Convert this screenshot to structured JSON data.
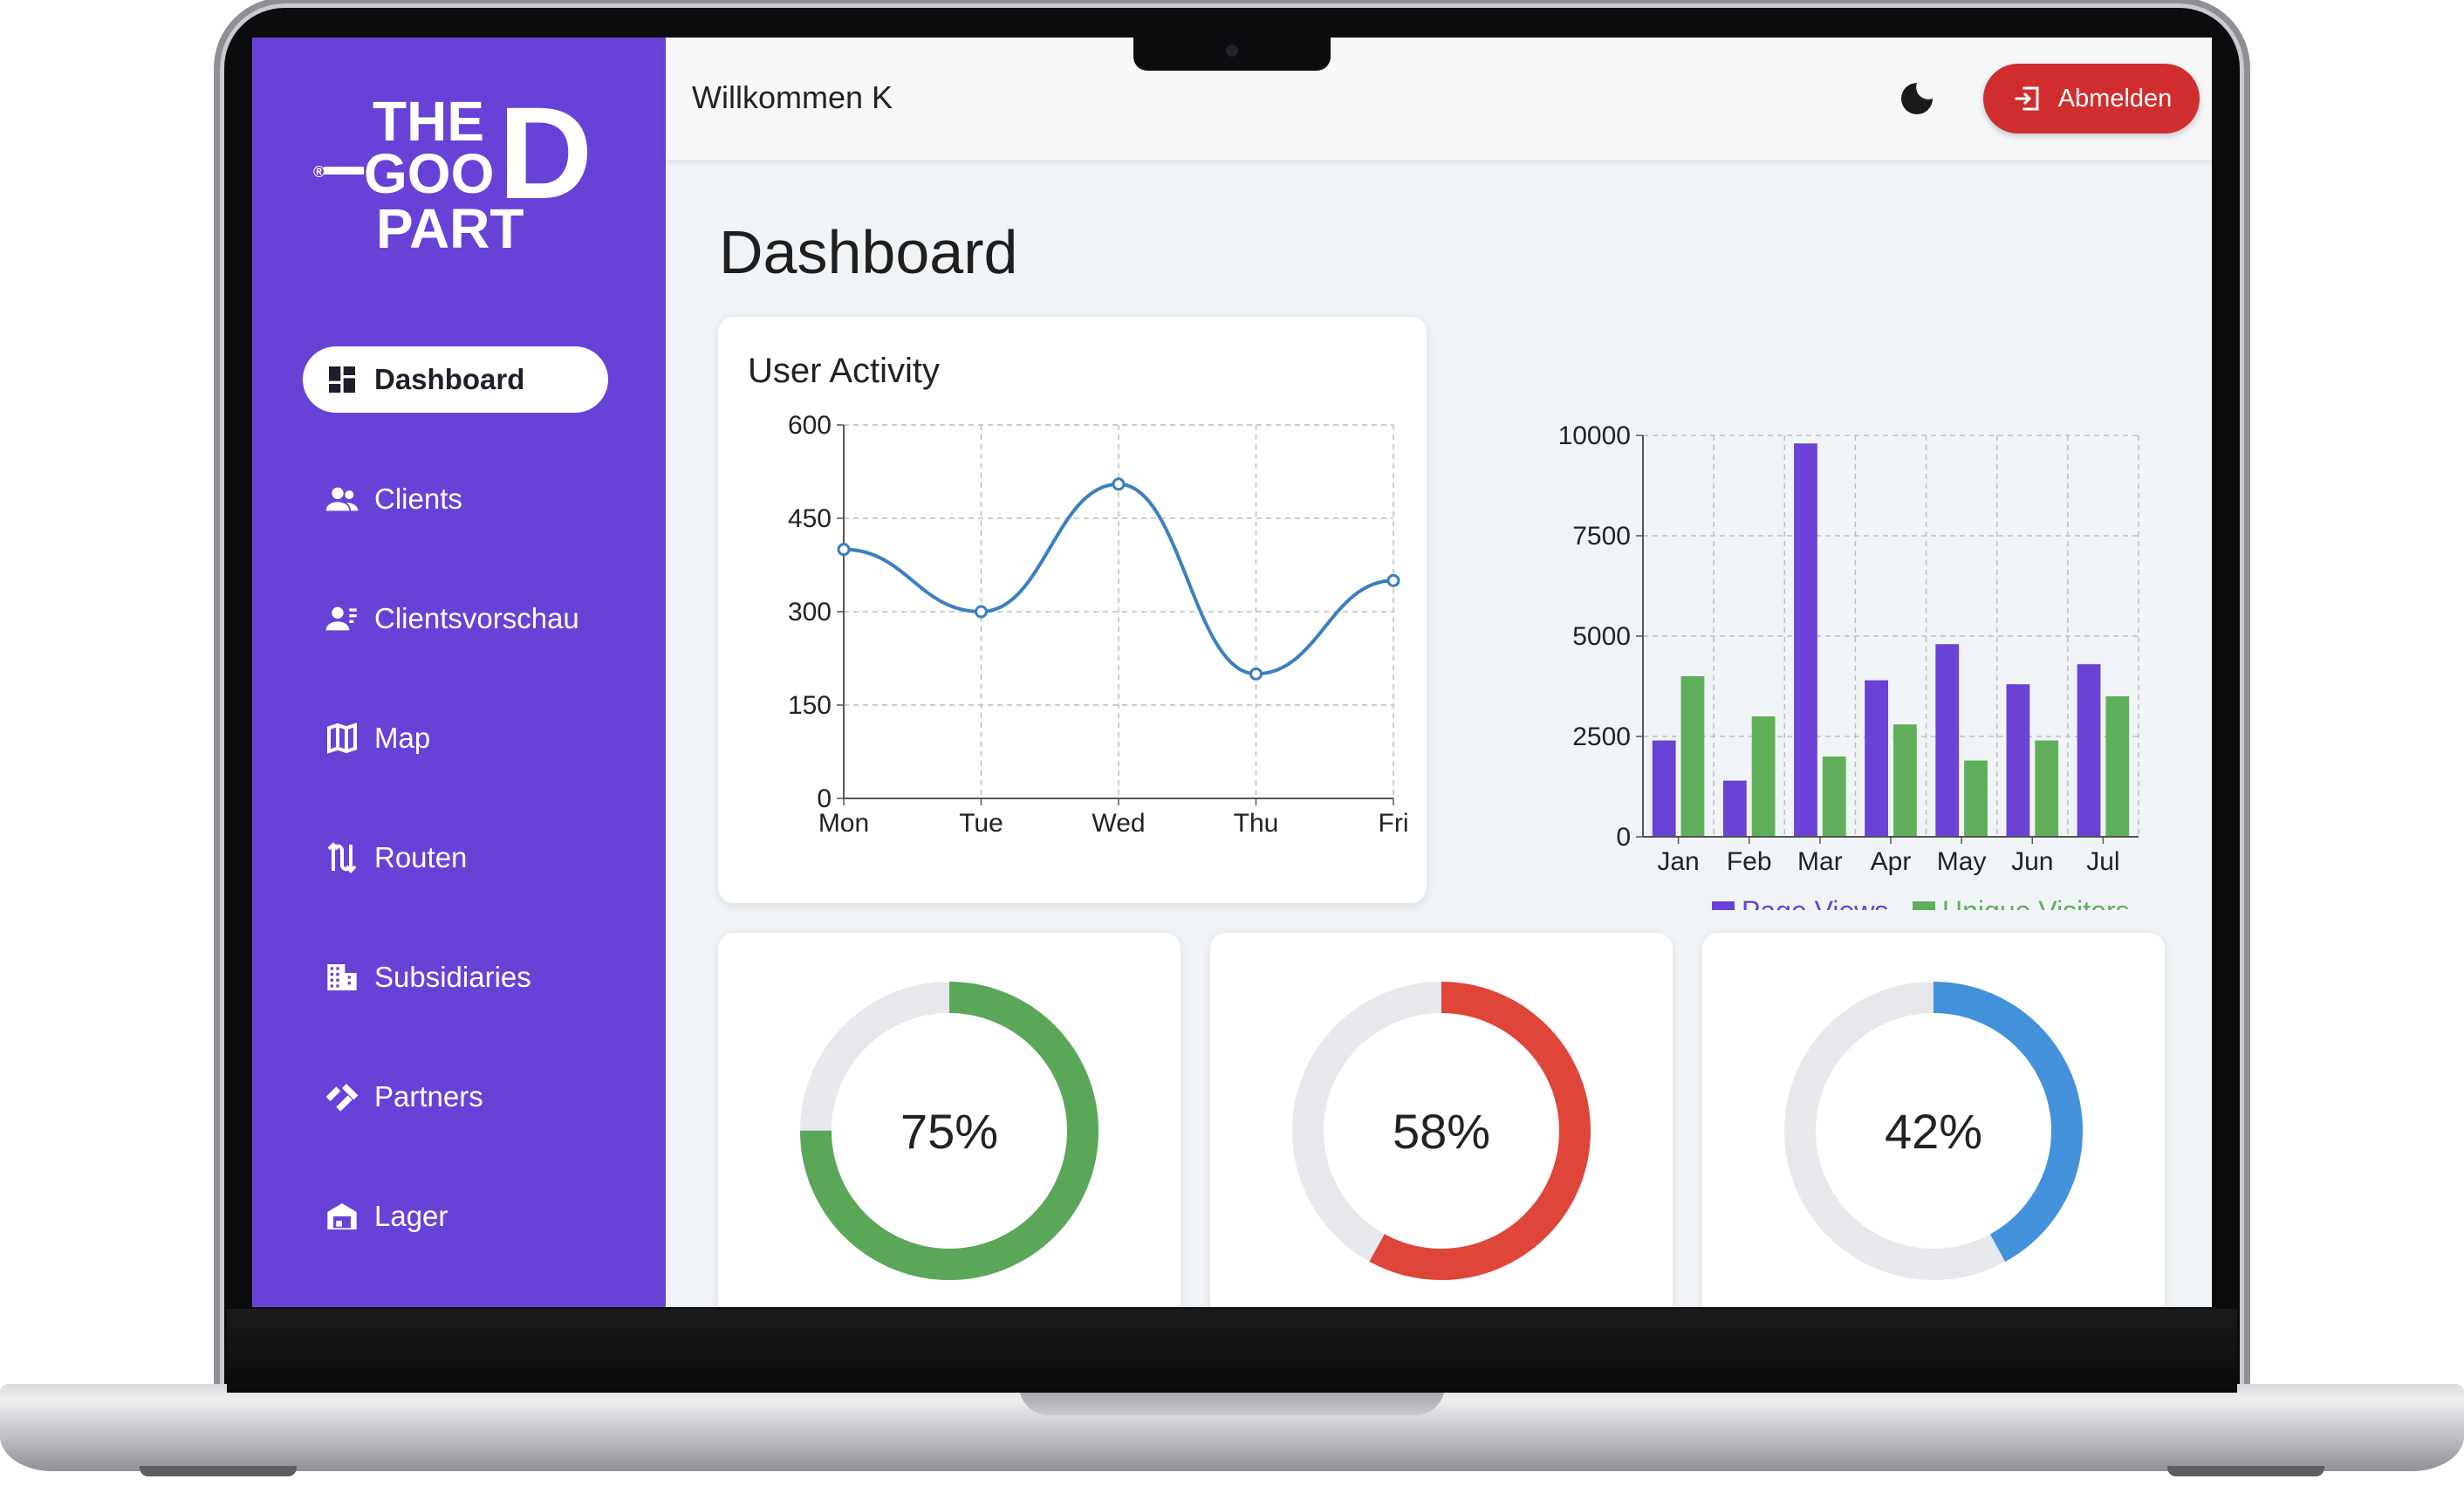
{
  "header": {
    "welcome": "Willkommen K",
    "logout_label": "Abmelden"
  },
  "logo": {
    "line1": "THE",
    "line2": "GOO",
    "line3": "PART",
    "big_letter": "D",
    "mark": "®"
  },
  "sidebar": {
    "items": [
      {
        "label": "Dashboard",
        "icon": "dashboard-icon",
        "active": true
      },
      {
        "label": "Clients",
        "icon": "people-icon"
      },
      {
        "label": "Clientsvorschau",
        "icon": "person-preview-icon"
      },
      {
        "label": "Map",
        "icon": "map-icon"
      },
      {
        "label": "Routen",
        "icon": "route-icon"
      },
      {
        "label": "Subsidiaries",
        "icon": "building-icon"
      },
      {
        "label": "Partners",
        "icon": "handshake-icon"
      },
      {
        "label": "Lager",
        "icon": "warehouse-icon"
      }
    ]
  },
  "main": {
    "title": "Dashboard"
  },
  "colors": {
    "sidebar": "#6842d7",
    "logout": "#d02e2e",
    "line": "#3a7fc0",
    "page_views": "#6a42d6",
    "unique_visitors": "#5faf5a",
    "donut_green": "#5aa758",
    "donut_red": "#e0453a",
    "donut_blue": "#4391db",
    "donut_track": "#e6e8ec"
  },
  "chart_data": [
    {
      "type": "line",
      "title": "User Activity",
      "categories": [
        "Mon",
        "Tue",
        "Wed",
        "Thu",
        "Fri"
      ],
      "values": [
        400,
        300,
        505,
        200,
        350
      ],
      "ylim": [
        0,
        600
      ],
      "yticks": [
        0,
        150,
        300,
        450,
        600
      ],
      "grid": true
    },
    {
      "type": "bar",
      "categories": [
        "Jan",
        "Feb",
        "Mar",
        "Apr",
        "May",
        "Jun",
        "Jul"
      ],
      "series": [
        {
          "name": "Page Views",
          "values": [
            2400,
            1400,
            9800,
            3900,
            4800,
            3800,
            4300
          ]
        },
        {
          "name": "Unique Visitors",
          "values": [
            4000,
            3000,
            2000,
            2800,
            1900,
            2400,
            3500
          ]
        }
      ],
      "ylim": [
        0,
        10000
      ],
      "yticks": [
        0,
        2500,
        5000,
        7500,
        10000
      ],
      "grid": true,
      "legend": "bottom"
    },
    {
      "type": "pie",
      "values": [
        75
      ],
      "label": "75%",
      "color": "#5aa758"
    },
    {
      "type": "pie",
      "values": [
        58
      ],
      "label": "58%",
      "color": "#e0453a"
    },
    {
      "type": "pie",
      "values": [
        42
      ],
      "label": "42%",
      "color": "#4391db"
    }
  ]
}
